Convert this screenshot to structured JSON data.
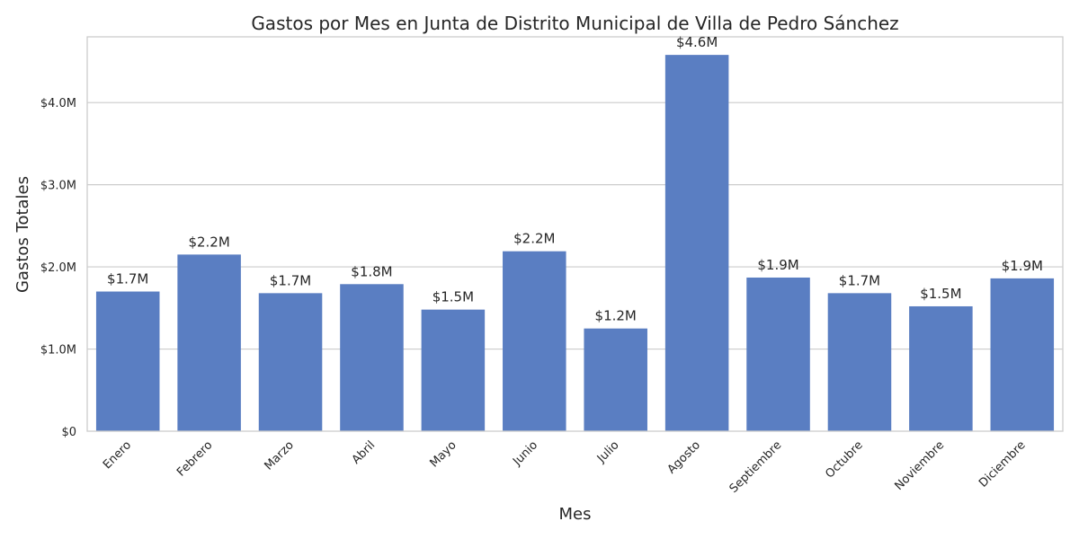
{
  "colors": {
    "bar": "#5a7ec2",
    "grid": "#cccccc",
    "text": "#262626"
  },
  "chart_data": {
    "type": "bar",
    "title": "Gastos por Mes en Junta de Distrito Municipal de Villa de Pedro Sánchez",
    "xlabel": "Mes",
    "ylabel": "Gastos Totales",
    "ylim": [
      0,
      4800000
    ],
    "yticks": [
      0,
      1000000,
      2000000,
      3000000,
      4000000
    ],
    "ytick_labels": [
      "$0",
      "$1.0M",
      "$2.0M",
      "$3.0M",
      "$4.0M"
    ],
    "grid": true,
    "categories": [
      "Enero",
      "Febrero",
      "Marzo",
      "Abril",
      "Mayo",
      "Junio",
      "Julio",
      "Agosto",
      "Septiembre",
      "Octubre",
      "Noviembre",
      "Diciembre"
    ],
    "values": [
      1700000,
      2150000,
      1680000,
      1790000,
      1480000,
      2190000,
      1250000,
      4580000,
      1870000,
      1680000,
      1520000,
      1860000
    ],
    "value_labels": [
      "$1.7M",
      "$2.2M",
      "$1.7M",
      "$1.8M",
      "$1.5M",
      "$2.2M",
      "$1.2M",
      "$4.6M",
      "$1.9M",
      "$1.7M",
      "$1.5M",
      "$1.9M"
    ]
  }
}
